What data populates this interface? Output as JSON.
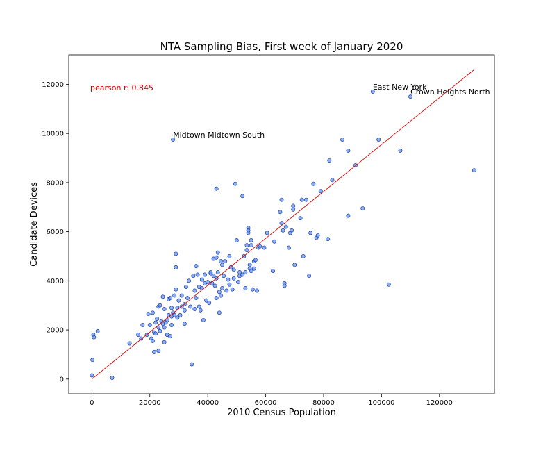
{
  "chart_data": {
    "type": "scatter",
    "title": "NTA Sampling Bias, First week of January 2020",
    "xlabel": "2010 Census Population",
    "ylabel": "Candidate Devices",
    "xlim": [
      -8000,
      139000
    ],
    "ylim": [
      -600,
      13200
    ],
    "xticks": [
      0,
      20000,
      40000,
      60000,
      80000,
      100000,
      120000
    ],
    "yticks": [
      0,
      2000,
      4000,
      6000,
      8000,
      10000,
      12000
    ],
    "grid": false,
    "point_color": "#6495ED",
    "point_edge_color": "#1f3fa8",
    "line_color": "#e00000",
    "pearson_color": "#e00000",
    "pearson_text": "pearson r: 0.845",
    "trend_line": [
      [
        0,
        0
      ],
      [
        132000,
        12600
      ]
    ],
    "annotations": [
      {
        "text": "East New York",
        "x": 97000,
        "y": 11700
      },
      {
        "text": "Crown Heights North",
        "x": 110000,
        "y": 11500
      },
      {
        "text": "Midtown Midtown South",
        "x": 28000,
        "y": 9750
      }
    ],
    "points": [
      [
        0,
        150
      ],
      [
        200,
        780
      ],
      [
        500,
        1800
      ],
      [
        700,
        1700
      ],
      [
        2000,
        1950
      ],
      [
        7000,
        50
      ],
      [
        13000,
        1450
      ],
      [
        16000,
        1800
      ],
      [
        17000,
        1650
      ],
      [
        17500,
        2200
      ],
      [
        19000,
        1800
      ],
      [
        19500,
        2650
      ],
      [
        20000,
        2200
      ],
      [
        20500,
        1650
      ],
      [
        21000,
        1550
      ],
      [
        21000,
        2700
      ],
      [
        21500,
        1900
      ],
      [
        21500,
        1100
      ],
      [
        22000,
        2300
      ],
      [
        22000,
        1850
      ],
      [
        22500,
        2450
      ],
      [
        23000,
        1150
      ],
      [
        23000,
        2100
      ],
      [
        23500,
        1950
      ],
      [
        23000,
        2950
      ],
      [
        23500,
        3000
      ],
      [
        24000,
        2350
      ],
      [
        24500,
        2250
      ],
      [
        24500,
        3350
      ],
      [
        25000,
        2100
      ],
      [
        25000,
        1500
      ],
      [
        25500,
        2300
      ],
      [
        25000,
        2850
      ],
      [
        26000,
        2400
      ],
      [
        26000,
        1800
      ],
      [
        26500,
        2600
      ],
      [
        26500,
        3250
      ],
      [
        27000,
        1750
      ],
      [
        27000,
        3300
      ],
      [
        27500,
        2550
      ],
      [
        27500,
        2200
      ],
      [
        27500,
        2900
      ],
      [
        28000,
        2700
      ],
      [
        28000,
        9750
      ],
      [
        28500,
        3400
      ],
      [
        28500,
        2600
      ],
      [
        29000,
        4550
      ],
      [
        29000,
        5100
      ],
      [
        29000,
        3650
      ],
      [
        29500,
        2500
      ],
      [
        29500,
        2900
      ],
      [
        30000,
        3200
      ],
      [
        30500,
        2600
      ],
      [
        31000,
        2950
      ],
      [
        31000,
        3400
      ],
      [
        32000,
        3050
      ],
      [
        32000,
        2800
      ],
      [
        32000,
        2250
      ],
      [
        32500,
        3750
      ],
      [
        33000,
        3300
      ],
      [
        33500,
        4000
      ],
      [
        34000,
        2950
      ],
      [
        34500,
        600
      ],
      [
        35000,
        4200
      ],
      [
        35500,
        2850
      ],
      [
        35500,
        3600
      ],
      [
        36000,
        4600
      ],
      [
        36000,
        3300
      ],
      [
        36500,
        4250
      ],
      [
        37000,
        2950
      ],
      [
        37000,
        3750
      ],
      [
        37500,
        2800
      ],
      [
        38000,
        3700
      ],
      [
        38000,
        4050
      ],
      [
        38500,
        2400
      ],
      [
        39000,
        3900
      ],
      [
        39000,
        4250
      ],
      [
        39500,
        3200
      ],
      [
        40000,
        3950
      ],
      [
        40500,
        3100
      ],
      [
        41000,
        4300
      ],
      [
        41000,
        4350
      ],
      [
        41500,
        3900
      ],
      [
        42000,
        4900
      ],
      [
        42000,
        4200
      ],
      [
        42500,
        3800
      ],
      [
        43000,
        4950
      ],
      [
        43000,
        4100
      ],
      [
        43000,
        7750
      ],
      [
        43000,
        3300
      ],
      [
        43500,
        4350
      ],
      [
        43500,
        5150
      ],
      [
        44000,
        2700
      ],
      [
        44000,
        3550
      ],
      [
        44500,
        4800
      ],
      [
        44500,
        3400
      ],
      [
        45000,
        4650
      ],
      [
        45000,
        3700
      ],
      [
        45500,
        4200
      ],
      [
        46000,
        4800
      ],
      [
        46500,
        3600
      ],
      [
        47000,
        4050
      ],
      [
        47500,
        3850
      ],
      [
        47500,
        5000
      ],
      [
        48000,
        4550
      ],
      [
        48500,
        3650
      ],
      [
        49000,
        4100
      ],
      [
        49000,
        4450
      ],
      [
        49500,
        7950
      ],
      [
        50000,
        5650
      ],
      [
        50500,
        3950
      ],
      [
        51000,
        4350
      ],
      [
        51000,
        4200
      ],
      [
        52000,
        7450
      ],
      [
        52000,
        4250
      ],
      [
        52500,
        5000
      ],
      [
        53000,
        3700
      ],
      [
        53000,
        4350
      ],
      [
        53500,
        5250
      ],
      [
        53500,
        5450
      ],
      [
        54000,
        6150
      ],
      [
        54000,
        6050
      ],
      [
        54000,
        5950
      ],
      [
        54500,
        4650
      ],
      [
        54500,
        4500
      ],
      [
        55000,
        4400
      ],
      [
        55000,
        5650
      ],
      [
        55000,
        5450
      ],
      [
        55500,
        3650
      ],
      [
        56000,
        4500
      ],
      [
        56000,
        4800
      ],
      [
        56500,
        4850
      ],
      [
        57000,
        3600
      ],
      [
        57500,
        5350
      ],
      [
        58000,
        5400
      ],
      [
        59500,
        5350
      ],
      [
        60500,
        5950
      ],
      [
        62500,
        4400
      ],
      [
        63000,
        5600
      ],
      [
        65000,
        6800
      ],
      [
        65500,
        6350
      ],
      [
        65500,
        7300
      ],
      [
        66000,
        6050
      ],
      [
        66500,
        3800
      ],
      [
        66500,
        3900
      ],
      [
        67000,
        6200
      ],
      [
        68000,
        5350
      ],
      [
        68500,
        5950
      ],
      [
        69000,
        6050
      ],
      [
        69500,
        6900
      ],
      [
        69500,
        7050
      ],
      [
        70000,
        4650
      ],
      [
        72000,
        6550
      ],
      [
        72500,
        7300
      ],
      [
        73000,
        5000
      ],
      [
        74000,
        7300
      ],
      [
        75000,
        4200
      ],
      [
        75500,
        5950
      ],
      [
        76500,
        7950
      ],
      [
        77500,
        5750
      ],
      [
        78000,
        5850
      ],
      [
        79000,
        7650
      ],
      [
        81500,
        5700
      ],
      [
        82000,
        8900
      ],
      [
        83000,
        8100
      ],
      [
        86500,
        9750
      ],
      [
        88500,
        6650
      ],
      [
        88500,
        9300
      ],
      [
        91000,
        8700
      ],
      [
        93500,
        6950
      ],
      [
        97000,
        11700
      ],
      [
        99000,
        9750
      ],
      [
        102500,
        3850
      ],
      [
        106500,
        9300
      ],
      [
        110000,
        11500
      ],
      [
        132000,
        8500
      ]
    ]
  }
}
